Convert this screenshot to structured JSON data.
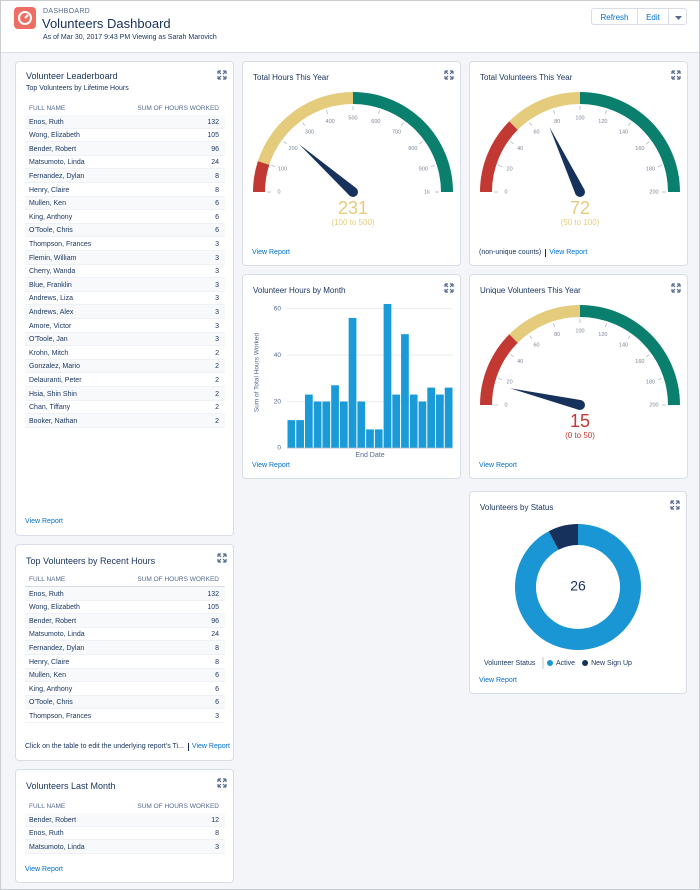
{
  "header": {
    "label": "DASHBOARD",
    "title": "Volunteers Dashboard",
    "subtitle": "As of Mar 30, 2017 9:43 PM Viewing as Sarah Marovich",
    "buttons": [
      "Refresh",
      "Edit"
    ]
  },
  "tables": [
    {
      "title": "Volunteer Leaderboard",
      "subtitle": "Top Volunteers by Lifetime Hours",
      "columns": [
        "FULL NAME",
        "SUM OF HOURS WORKED"
      ],
      "rows": [
        [
          "Enos, Ruth",
          132
        ],
        [
          "Wong, Elizabeth",
          105
        ],
        [
          "Bender, Robert",
          96
        ],
        [
          "Matsumoto, Linda",
          24
        ],
        [
          "Fernandez, Dylan",
          8
        ],
        [
          "Henry, Claire",
          8
        ],
        [
          "Mullen, Ken",
          6
        ],
        [
          "King, Anthony",
          6
        ],
        [
          "O'Toole, Chris",
          6
        ],
        [
          "Thompson, Frances",
          3
        ],
        [
          "Flemin, William",
          3
        ],
        [
          "Cherry, Wanda",
          3
        ],
        [
          "Blue, Franklin",
          3
        ],
        [
          "Andrews, Liza",
          3
        ],
        [
          "Andrews, Alex",
          3
        ],
        [
          "Amore, Victor",
          3
        ],
        [
          "O'Toole, Jan",
          3
        ],
        [
          "Krohn, Mitch",
          2
        ],
        [
          "Gonzalez, Mario",
          2
        ],
        [
          "Delauranti, Peter",
          2
        ],
        [
          "Hsia, Shin Shin",
          2
        ],
        [
          "Chan, Tiffany",
          2
        ],
        [
          "Booker, Nathan",
          2
        ]
      ],
      "footer": [
        "View Report"
      ]
    },
    {
      "title": "Top Volunteers by Recent Hours",
      "columns": [
        "FULL NAME",
        "SUM OF HOURS WORKED"
      ],
      "rows": [
        [
          "Enos, Ruth",
          132
        ],
        [
          "Wong, Elizabeth",
          105
        ],
        [
          "Bender, Robert",
          96
        ],
        [
          "Matsumoto, Linda",
          24
        ],
        [
          "Fernandez, Dylan",
          8
        ],
        [
          "Henry, Claire",
          8
        ],
        [
          "Mullen, Ken",
          6
        ],
        [
          "King, Anthony",
          6
        ],
        [
          "O'Toole, Chris",
          6
        ],
        [
          "Thompson, Frances",
          3
        ]
      ],
      "footer": [
        "Click on the table to edit the underlying report's Ti...",
        "View Report"
      ]
    },
    {
      "title": "Volunteers Last Month",
      "columns": [
        "FULL NAME",
        "SUM OF HOURS WORKED"
      ],
      "rows": [
        [
          "Bender, Robert",
          12
        ],
        [
          "Enos, Ruth",
          8
        ],
        [
          "Matsumoto, Linda",
          3
        ]
      ],
      "footer": [
        "View Report"
      ]
    }
  ],
  "chart_data": [
    {
      "type": "gauge",
      "title": "Total Hours This Year",
      "value": 231,
      "range_label": "(100 to 500)",
      "lim": [
        0,
        1000
      ],
      "ticks": [
        0,
        100,
        200,
        300,
        400,
        500,
        600,
        700,
        800,
        900,
        {
          "value": 1000,
          "label": "1k"
        }
      ],
      "bands": [
        {
          "from": 0,
          "to": 100,
          "color": "#c23934"
        },
        {
          "from": 100,
          "to": 500,
          "color": "#e4cc7c"
        },
        {
          "from": 500,
          "to": 1000,
          "color": "#0b7f6e"
        }
      ],
      "needle_color": "#16325c",
      "footer": [
        "View Report"
      ]
    },
    {
      "type": "gauge",
      "title": "Total Volunteers This Year",
      "value": 72,
      "range_label": "(50 to 100)",
      "lim": [
        0,
        200
      ],
      "ticks": [
        0,
        20,
        40,
        60,
        80,
        100,
        120,
        140,
        160,
        180,
        200
      ],
      "bands": [
        {
          "from": 0,
          "to": 50,
          "color": "#c23934"
        },
        {
          "from": 50,
          "to": 100,
          "color": "#e4cc7c"
        },
        {
          "from": 100,
          "to": 200,
          "color": "#0b7f6e"
        }
      ],
      "needle_color": "#16325c",
      "footer": [
        "(non-unique counts)",
        "View Report"
      ]
    },
    {
      "type": "bar",
      "title": "Volunteer Hours by Month",
      "x_label": "End Date",
      "y_label": "Sum of Total Hours Worked",
      "categories": [
        null,
        null,
        null,
        null,
        null,
        null,
        null,
        null,
        null,
        null,
        null,
        null,
        null,
        null,
        null,
        null,
        null,
        null,
        null
      ],
      "values": [
        12,
        12,
        23,
        20,
        20,
        27,
        20,
        56,
        20,
        8,
        8,
        62,
        23,
        49,
        23,
        20,
        26,
        23,
        26
      ],
      "color": "#1b9ad8",
      "ylim": [
        0,
        65
      ],
      "yticks": [
        0,
        20,
        40,
        60
      ],
      "grid": true,
      "footer": [
        "View Report"
      ]
    },
    {
      "type": "gauge",
      "title": "Unique Volunteers This Year",
      "value": 15,
      "range_label": "(0 to 50)",
      "lim": [
        0,
        200
      ],
      "ticks": [
        0,
        20,
        40,
        60,
        80,
        100,
        120,
        140,
        160,
        180,
        200
      ],
      "bands": [
        {
          "from": 0,
          "to": 50,
          "color": "#c23934"
        },
        {
          "from": 50,
          "to": 100,
          "color": "#e4cc7c"
        },
        {
          "from": 100,
          "to": 200,
          "color": "#0b7f6e"
        }
      ],
      "needle_color": "#16325c",
      "footer": [
        "View Report"
      ]
    },
    {
      "type": "donut",
      "title": "Volunteers by Status",
      "total": 26,
      "legend_title": "Volunteer Status",
      "categories": [
        "Active",
        "New Sign Up"
      ],
      "values": [
        24,
        2
      ],
      "colors": [
        "#1b96d4",
        "#16325c"
      ],
      "footer": [
        "View Report"
      ]
    }
  ]
}
